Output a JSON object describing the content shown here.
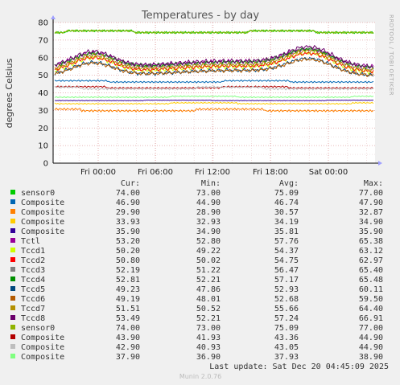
{
  "chart_data": {
    "type": "line",
    "title": "Temperatures - by day",
    "ylabel": "degrees Celsius",
    "ylim": [
      0,
      80
    ],
    "y_ticks": [
      0,
      10,
      20,
      30,
      40,
      50,
      60,
      70,
      80
    ],
    "x_ticks": [
      "Fri 00:00",
      "Fri 06:00",
      "Fri 12:00",
      "Fri 18:00",
      "Sat 00:00"
    ],
    "grid": true,
    "side_label": "RRDTOOL / TOBI OETIKER",
    "column_headers": [
      "Cur:",
      "Min:",
      "Avg:",
      "Max:"
    ],
    "series": [
      {
        "name": "sensor0",
        "color": "#00cc00",
        "cur": "74.00",
        "min": "73.00",
        "avg": "75.09",
        "max": "77.00",
        "base": 75
      },
      {
        "name": "Composite",
        "color": "#0066b3",
        "cur": "46.90",
        "min": "44.90",
        "avg": "46.74",
        "max": "47.90",
        "base": 46.7
      },
      {
        "name": "Composite",
        "color": "#ff8000",
        "cur": "29.90",
        "min": "28.90",
        "avg": "30.57",
        "max": "32.87",
        "base": 30.6
      },
      {
        "name": "Composite",
        "color": "#ffcc00",
        "cur": "33.93",
        "min": "32.93",
        "avg": "34.19",
        "max": "34.90",
        "base": 34.2
      },
      {
        "name": "Composite",
        "color": "#330099",
        "cur": "35.90",
        "min": "34.90",
        "avg": "35.81",
        "max": "35.90",
        "base": 35.8
      },
      {
        "name": "Tctl",
        "color": "#990099",
        "cur": "53.20",
        "min": "52.80",
        "avg": "57.76",
        "max": "65.38",
        "base": 57.8
      },
      {
        "name": "Tccd1",
        "color": "#ccff00",
        "cur": "50.20",
        "min": "49.22",
        "avg": "54.37",
        "max": "63.12",
        "base": 54.4
      },
      {
        "name": "Tccd2",
        "color": "#ff0000",
        "cur": "50.80",
        "min": "50.02",
        "avg": "54.75",
        "max": "62.97",
        "base": 54.8
      },
      {
        "name": "Tccd3",
        "color": "#808080",
        "cur": "52.19",
        "min": "51.22",
        "avg": "56.47",
        "max": "65.40",
        "base": 56.5
      },
      {
        "name": "Tccd4",
        "color": "#008f00",
        "cur": "52.81",
        "min": "52.21",
        "avg": "57.17",
        "max": "65.48",
        "base": 57.2
      },
      {
        "name": "Tccd5",
        "color": "#00487d",
        "cur": "49.23",
        "min": "47.86",
        "avg": "52.93",
        "max": "60.11",
        "base": 52.9
      },
      {
        "name": "Tccd6",
        "color": "#b35a00",
        "cur": "49.19",
        "min": "48.01",
        "avg": "52.68",
        "max": "59.50",
        "base": 52.7
      },
      {
        "name": "Tccd7",
        "color": "#b38f00",
        "cur": "51.51",
        "min": "50.52",
        "avg": "55.66",
        "max": "64.40",
        "base": 55.7
      },
      {
        "name": "Tccd8",
        "color": "#6b006b",
        "cur": "53.49",
        "min": "52.21",
        "avg": "57.24",
        "max": "66.91",
        "base": 57.2
      },
      {
        "name": "sensor0",
        "color": "#8fb300",
        "cur": "74.00",
        "min": "73.00",
        "avg": "75.09",
        "max": "77.00",
        "base": 75
      },
      {
        "name": "Composite",
        "color": "#b30000",
        "cur": "43.90",
        "min": "41.93",
        "avg": "43.36",
        "max": "44.90",
        "base": 43.4
      },
      {
        "name": "Composite",
        "color": "#bebebe",
        "cur": "42.90",
        "min": "40.93",
        "avg": "43.05",
        "max": "44.90",
        "base": 43.0
      },
      {
        "name": "Composite",
        "color": "#80ff80",
        "cur": "37.90",
        "min": "36.90",
        "avg": "37.93",
        "max": "38.90",
        "base": 37.9
      }
    ]
  },
  "last_update": "Last update: Sat Dec 20 04:45:09 2025",
  "footer": "Munin 2.0.76"
}
